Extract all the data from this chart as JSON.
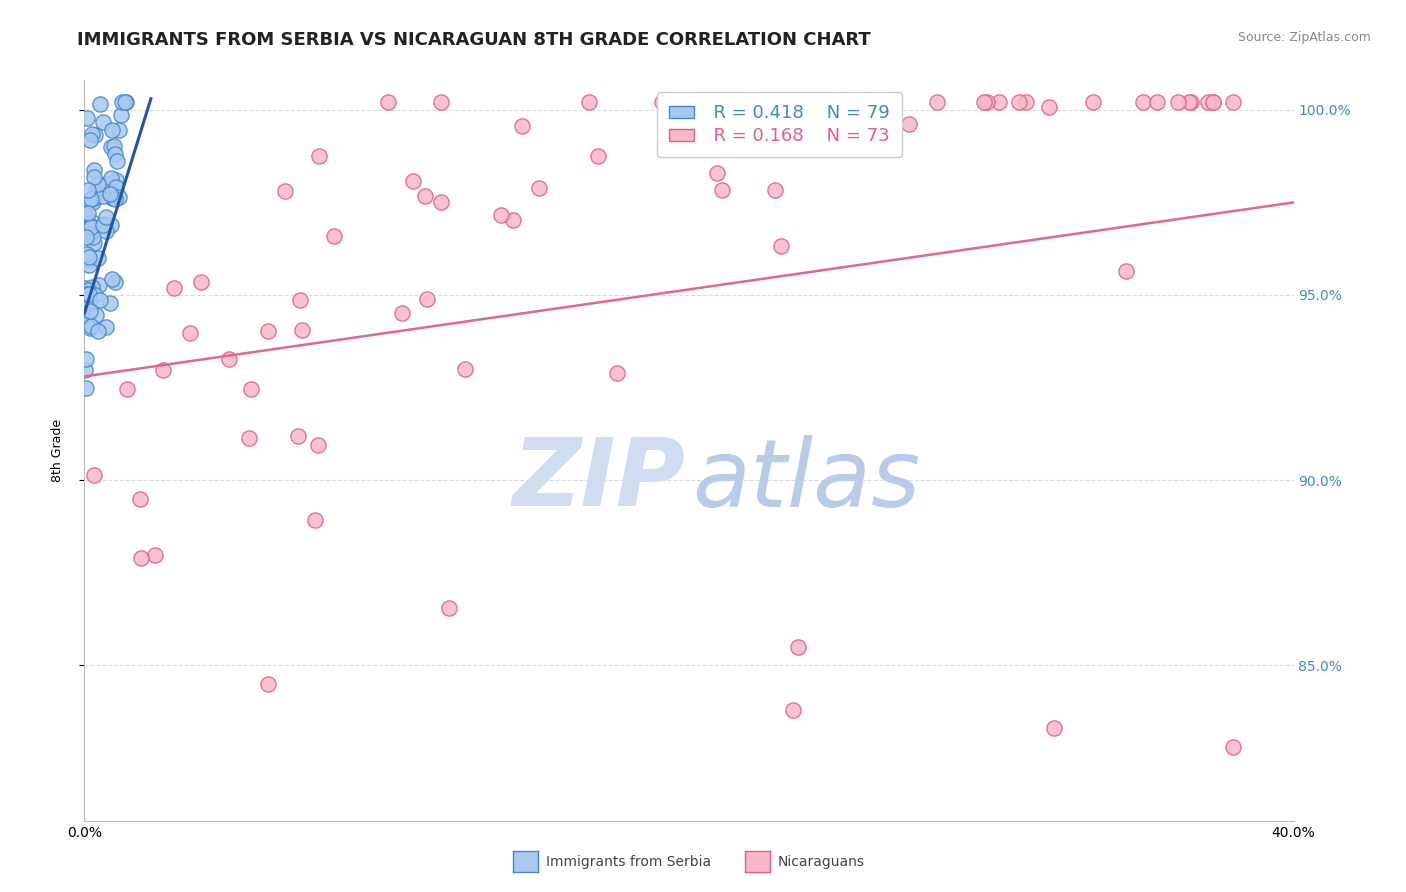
{
  "title": "IMMIGRANTS FROM SERBIA VS NICARAGUAN 8TH GRADE CORRELATION CHART",
  "source_text": "Source: ZipAtlas.com",
  "ylabel": "8th Grade",
  "xlim": [
    0.0,
    0.4
  ],
  "ylim": [
    0.808,
    1.008
  ],
  "legend_R1": "R = 0.418",
  "legend_N1": "N = 79",
  "legend_R2": "R = 0.168",
  "legend_N2": "N = 73",
  "blue_fill": "#A8C8F0",
  "blue_edge": "#4488CC",
  "pink_fill": "#F8B8C8",
  "pink_edge": "#E06080",
  "blue_line_color": "#2255AA",
  "pink_line_color": "#E06888",
  "background_color": "#FFFFFF",
  "grid_color": "#DDDDDD",
  "right_tick_color": "#4488CC",
  "title_color": "#222222",
  "source_color": "#888888",
  "watermark_zip_color": "#D0DCF0",
  "watermark_atlas_color": "#B8CCE8"
}
